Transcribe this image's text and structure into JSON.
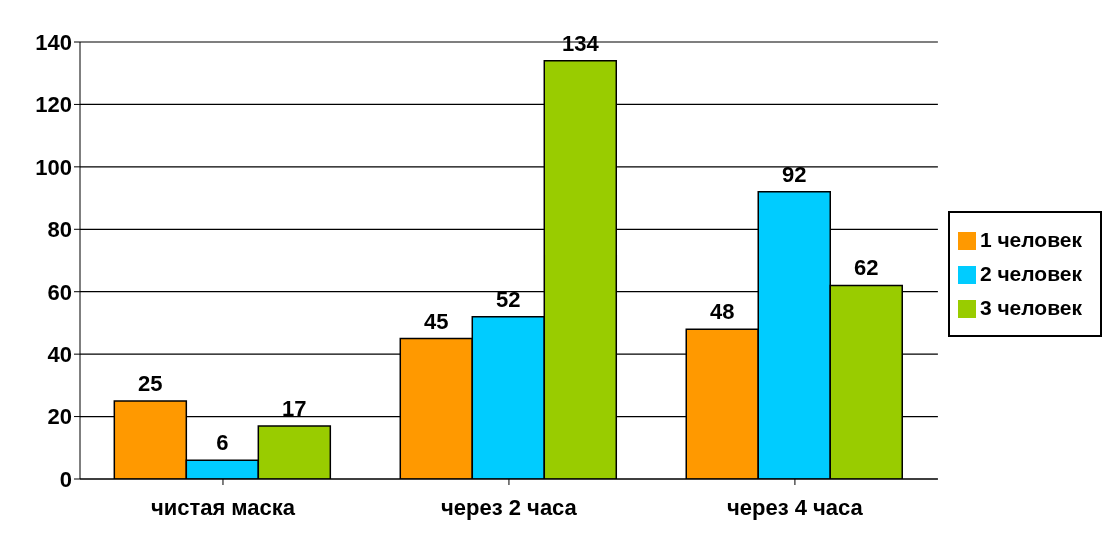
{
  "chart_data": {
    "type": "bar",
    "categories": [
      "чистая маска",
      "через 2 часа",
      "через 4 часа"
    ],
    "series": [
      {
        "name": "1 человек",
        "color": "#ff9900",
        "values": [
          25,
          45,
          48
        ]
      },
      {
        "name": "2 человек",
        "color": "#00ccff",
        "values": [
          6,
          52,
          92
        ]
      },
      {
        "name": "3 человек",
        "color": "#99cc00",
        "values": [
          17,
          134,
          62
        ]
      }
    ],
    "ylim": [
      0,
      140
    ],
    "yticks": [
      0,
      20,
      40,
      60,
      80,
      100,
      120,
      140
    ],
    "grid": "y",
    "legend": "right",
    "data_labels": true
  }
}
